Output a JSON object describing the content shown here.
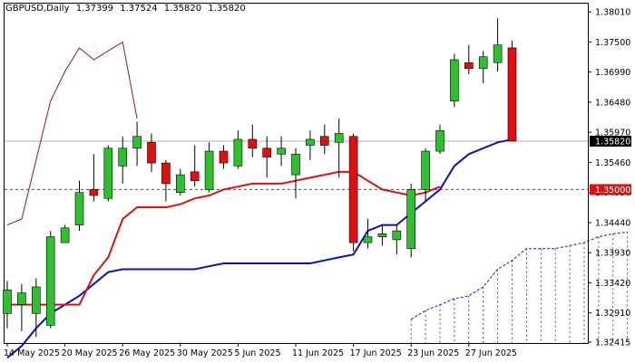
{
  "chart_data": {
    "type": "candlestick",
    "header": {
      "symbol": "GBPUSD,Daily",
      "open": "1.37399",
      "high": "1.37524",
      "low": "1.35820",
      "close": "1.35820"
    },
    "y_range": [
      1.324,
      1.3815
    ],
    "y_ticks": [
      "1.38010",
      "1.37500",
      "1.36990",
      "1.36480",
      "1.35970",
      "1.35460",
      "1.34950",
      "1.34440",
      "1.33930",
      "1.33420",
      "1.32910",
      "1.32415"
    ],
    "x_ticks": [
      {
        "index": 0,
        "label": "14 May 2025"
      },
      {
        "index": 4,
        "label": "20 May 2025"
      },
      {
        "index": 8,
        "label": "26 May 2025"
      },
      {
        "index": 12,
        "label": "30 May 2025"
      },
      {
        "index": 16,
        "label": "5 Jun 2025"
      },
      {
        "index": 20,
        "label": "11 Jun 2025"
      },
      {
        "index": 24,
        "label": "17 Jun 2025"
      },
      {
        "index": 28,
        "label": "23 Jun 2025"
      },
      {
        "index": 32,
        "label": "27 Jun 2025"
      }
    ],
    "candles": [
      {
        "o": 1.329,
        "h": 1.3345,
        "l": 1.3265,
        "c": 1.333
      },
      {
        "o": 1.3305,
        "h": 1.334,
        "l": 1.326,
        "c": 1.3325
      },
      {
        "o": 1.329,
        "h": 1.335,
        "l": 1.325,
        "c": 1.3335
      },
      {
        "o": 1.327,
        "h": 1.343,
        "l": 1.3265,
        "c": 1.342
      },
      {
        "o": 1.341,
        "h": 1.344,
        "l": 1.341,
        "c": 1.3435
      },
      {
        "o": 1.344,
        "h": 1.3515,
        "l": 1.343,
        "c": 1.3495
      },
      {
        "o": 1.35,
        "h": 1.356,
        "l": 1.348,
        "c": 1.349
      },
      {
        "o": 1.3485,
        "h": 1.3575,
        "l": 1.348,
        "c": 1.357
      },
      {
        "o": 1.354,
        "h": 1.359,
        "l": 1.351,
        "c": 1.357
      },
      {
        "o": 1.357,
        "h": 1.3615,
        "l": 1.354,
        "c": 1.359
      },
      {
        "o": 1.358,
        "h": 1.3595,
        "l": 1.353,
        "c": 1.3545
      },
      {
        "o": 1.3545,
        "h": 1.355,
        "l": 1.348,
        "c": 1.351
      },
      {
        "o": 1.3495,
        "h": 1.3535,
        "l": 1.349,
        "c": 1.3525
      },
      {
        "o": 1.353,
        "h": 1.3575,
        "l": 1.3505,
        "c": 1.3515
      },
      {
        "o": 1.35,
        "h": 1.358,
        "l": 1.3495,
        "c": 1.3565
      },
      {
        "o": 1.3565,
        "h": 1.3575,
        "l": 1.3535,
        "c": 1.3545
      },
      {
        "o": 1.354,
        "h": 1.36,
        "l": 1.3535,
        "c": 1.3585
      },
      {
        "o": 1.3585,
        "h": 1.361,
        "l": 1.3555,
        "c": 1.357
      },
      {
        "o": 1.357,
        "h": 1.359,
        "l": 1.352,
        "c": 1.3555
      },
      {
        "o": 1.356,
        "h": 1.359,
        "l": 1.354,
        "c": 1.357
      },
      {
        "o": 1.3525,
        "h": 1.357,
        "l": 1.3485,
        "c": 1.356
      },
      {
        "o": 1.3575,
        "h": 1.36,
        "l": 1.355,
        "c": 1.3585
      },
      {
        "o": 1.359,
        "h": 1.361,
        "l": 1.356,
        "c": 1.3575
      },
      {
        "o": 1.358,
        "h": 1.362,
        "l": 1.352,
        "c": 1.3595
      },
      {
        "o": 1.359,
        "h": 1.3595,
        "l": 1.3395,
        "c": 1.341
      },
      {
        "o": 1.341,
        "h": 1.345,
        "l": 1.34,
        "c": 1.342
      },
      {
        "o": 1.342,
        "h": 1.344,
        "l": 1.3405,
        "c": 1.3425
      },
      {
        "o": 1.3415,
        "h": 1.344,
        "l": 1.339,
        "c": 1.343
      },
      {
        "o": 1.34,
        "h": 1.351,
        "l": 1.3385,
        "c": 1.35
      },
      {
        "o": 1.35,
        "h": 1.357,
        "l": 1.348,
        "c": 1.3565
      },
      {
        "o": 1.3565,
        "h": 1.361,
        "l": 1.356,
        "c": 1.36
      },
      {
        "o": 1.365,
        "h": 1.373,
        "l": 1.364,
        "c": 1.372
      },
      {
        "o": 1.3715,
        "h": 1.3745,
        "l": 1.3695,
        "c": 1.3705
      },
      {
        "o": 1.3705,
        "h": 1.3735,
        "l": 1.368,
        "c": 1.3725
      },
      {
        "o": 1.3715,
        "h": 1.379,
        "l": 1.37,
        "c": 1.3745
      },
      {
        "o": 1.374,
        "h": 1.3752,
        "l": 1.3582,
        "c": 1.3582
      }
    ],
    "red_line": [
      1.3305,
      1.3305,
      1.3305,
      1.3305,
      1.3305,
      1.3305,
      1.3355,
      1.3385,
      1.345,
      1.347,
      1.347,
      1.347,
      1.3475,
      1.3485,
      1.349,
      1.35,
      1.3505,
      1.351,
      1.351,
      1.351,
      1.3515,
      1.352,
      1.3525,
      1.353,
      1.353,
      1.3515,
      1.35,
      1.3495,
      1.349,
      1.3495,
      1.3505
    ],
    "blue_line": [
      1.3215,
      1.3235,
      1.3265,
      1.329,
      1.3305,
      1.332,
      1.334,
      1.336,
      1.3365,
      1.3365,
      1.3365,
      1.3365,
      1.3365,
      1.3365,
      1.337,
      1.3375,
      1.3375,
      1.3375,
      1.3375,
      1.3375,
      1.3375,
      1.3375,
      1.338,
      1.3385,
      1.339,
      1.343,
      1.344,
      1.344,
      1.346,
      1.348,
      1.35,
      1.354,
      1.356,
      1.357,
      1.358,
      1.3585
    ],
    "lagging_line": [
      1.344,
      1.345,
      1.355,
      1.365,
      1.37,
      1.374,
      1.372,
      1.3735,
      1.375,
      1.362
    ],
    "cloud_upper": [
      1.328,
      1.3295,
      1.3305,
      1.3315,
      1.332,
      1.3335,
      1.3365,
      1.338,
      1.34,
      1.34,
      1.34,
      1.3405,
      1.341,
      1.342,
      1.3425,
      1.3428
    ],
    "cloud_start_index": 28,
    "reference_lines": [
      {
        "value": 1.3582,
        "label": "1.35820",
        "style": "solid-gray"
      },
      {
        "value": 1.35,
        "label": "1.35000",
        "style": "dashed-red"
      }
    ],
    "colors": {
      "bull": "#2ec02e",
      "bear": "#e01010",
      "red_line": "#e01010",
      "blue_line": "#0a10c8",
      "lagging": "#a01818",
      "cloud": "#1020b0",
      "price_line": "#b0b0b0",
      "level_line": "#e01010"
    }
  }
}
